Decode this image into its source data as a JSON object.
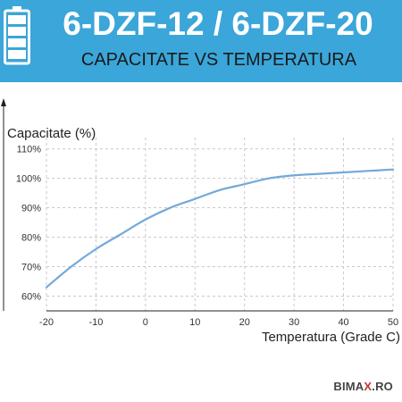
{
  "header": {
    "title": "6-DZF-12 / 6-DZF-20",
    "subtitle": "CAPACITATE VS TEMPERATURA",
    "battery_color": "#ffffff"
  },
  "logo": {
    "part1": "BIMA",
    "part2": "X",
    "part3": ".RO"
  },
  "chart_data": {
    "type": "line",
    "title": "CAPACITATE VS TEMPERATURA",
    "xlabel": "Temperatura (Grade C)",
    "ylabel": "Capacitate (%)",
    "xlim": [
      -20,
      50
    ],
    "ylim": [
      55,
      112
    ],
    "x_ticks": [
      -20,
      -10,
      0,
      10,
      20,
      30,
      40,
      50
    ],
    "y_ticks": [
      60,
      70,
      80,
      90,
      100,
      110
    ],
    "x_tick_labels": [
      "-20",
      "-10",
      "0",
      "10",
      "20",
      "30",
      "40",
      "50"
    ],
    "y_tick_labels": [
      "60%",
      "70%",
      "80%",
      "90%",
      "100%",
      "110%"
    ],
    "grid": true,
    "series": [
      {
        "color": "#74a9d8",
        "x": [
          -20,
          -15,
          -10,
          -5,
          0,
          5,
          10,
          15,
          20,
          25,
          30,
          35,
          40,
          45,
          50
        ],
        "y": [
          63,
          70,
          76,
          81,
          86,
          90,
          93,
          96,
          98,
          100,
          101,
          101.5,
          102,
          102.5,
          103
        ]
      }
    ]
  }
}
